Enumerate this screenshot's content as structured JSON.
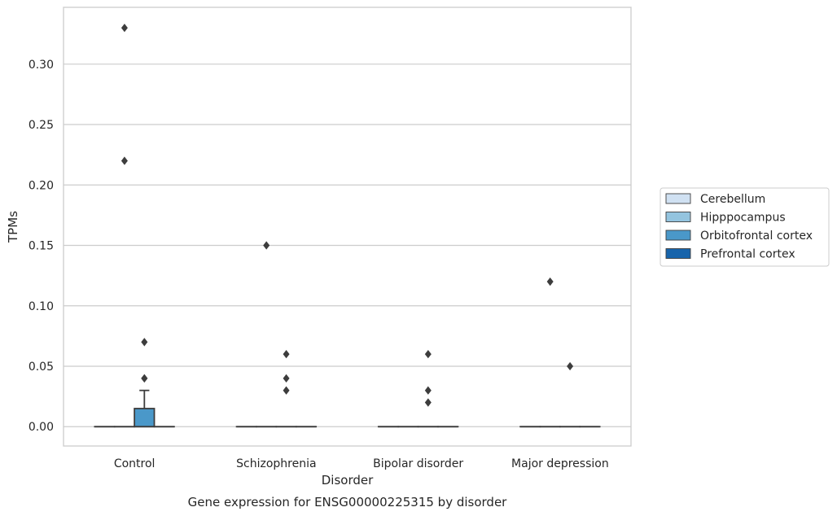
{
  "chart_data": {
    "type": "box",
    "title": "",
    "caption": "Gene expression for ENSG00000225315 by disorder",
    "xlabel": "Disorder",
    "ylabel": "TPMs",
    "categories": [
      "Control",
      "Schizophrenia",
      "Bipolar disorder",
      "Major depression"
    ],
    "ylim": [
      -0.016,
      0.347
    ],
    "yticks": [
      0.0,
      0.05,
      0.1,
      0.15,
      0.2,
      0.25,
      0.3
    ],
    "ytick_labels": [
      "0.00",
      "0.05",
      "0.10",
      "0.15",
      "0.20",
      "0.25",
      "0.30"
    ],
    "grid": true,
    "legend_position": "right",
    "series": [
      {
        "name": "Cerebellum",
        "color": "#d0e1f2",
        "boxes": [
          {
            "category": "Control",
            "q1": 0,
            "median": 0,
            "q3": 0,
            "whislo": 0,
            "whishi": 0,
            "fliers": []
          },
          {
            "category": "Schizophrenia",
            "q1": 0,
            "median": 0,
            "q3": 0,
            "whislo": 0,
            "whishi": 0,
            "fliers": []
          },
          {
            "category": "Bipolar disorder",
            "q1": 0,
            "median": 0,
            "q3": 0,
            "whislo": 0,
            "whishi": 0,
            "fliers": []
          },
          {
            "category": "Major depression",
            "q1": 0,
            "median": 0,
            "q3": 0,
            "whislo": 0,
            "whishi": 0,
            "fliers": []
          }
        ]
      },
      {
        "name": "Hipppocampus",
        "color": "#94c4df",
        "boxes": [
          {
            "category": "Control",
            "q1": 0,
            "median": 0,
            "q3": 0,
            "whislo": 0,
            "whishi": 0,
            "fliers": [
              0.33,
              0.22
            ]
          },
          {
            "category": "Schizophrenia",
            "q1": 0,
            "median": 0,
            "q3": 0,
            "whislo": 0,
            "whishi": 0,
            "fliers": [
              0.15
            ]
          },
          {
            "category": "Bipolar disorder",
            "q1": 0,
            "median": 0,
            "q3": 0,
            "whislo": 0,
            "whishi": 0,
            "fliers": []
          },
          {
            "category": "Major depression",
            "q1": 0,
            "median": 0,
            "q3": 0,
            "whislo": 0,
            "whishi": 0,
            "fliers": [
              0.12
            ]
          }
        ]
      },
      {
        "name": "Orbitofrontal cortex",
        "color": "#4a98c9",
        "boxes": [
          {
            "category": "Control",
            "q1": 0,
            "median": 0,
            "q3": 0.015,
            "whislo": 0,
            "whishi": 0.03,
            "fliers": [
              0.07,
              0.04,
              0.04
            ]
          },
          {
            "category": "Schizophrenia",
            "q1": 0,
            "median": 0,
            "q3": 0,
            "whislo": 0,
            "whishi": 0,
            "fliers": [
              0.06,
              0.04,
              0.03
            ]
          },
          {
            "category": "Bipolar disorder",
            "q1": 0,
            "median": 0,
            "q3": 0,
            "whislo": 0,
            "whishi": 0,
            "fliers": [
              0.06,
              0.03,
              0.02
            ]
          },
          {
            "category": "Major depression",
            "q1": 0,
            "median": 0,
            "q3": 0,
            "whislo": 0,
            "whishi": 0,
            "fliers": [
              0.05
            ]
          }
        ]
      },
      {
        "name": "Prefrontal cortex",
        "color": "#1764ab",
        "boxes": [
          {
            "category": "Control",
            "q1": 0,
            "median": 0,
            "q3": 0,
            "whislo": 0,
            "whishi": 0,
            "fliers": []
          },
          {
            "category": "Schizophrenia",
            "q1": 0,
            "median": 0,
            "q3": 0,
            "whislo": 0,
            "whishi": 0,
            "fliers": []
          },
          {
            "category": "Bipolar disorder",
            "q1": 0,
            "median": 0,
            "q3": 0,
            "whislo": 0,
            "whishi": 0,
            "fliers": []
          },
          {
            "category": "Major depression",
            "q1": 0,
            "median": 0,
            "q3": 0,
            "whislo": 0,
            "whishi": 0,
            "fliers": []
          }
        ]
      }
    ]
  }
}
